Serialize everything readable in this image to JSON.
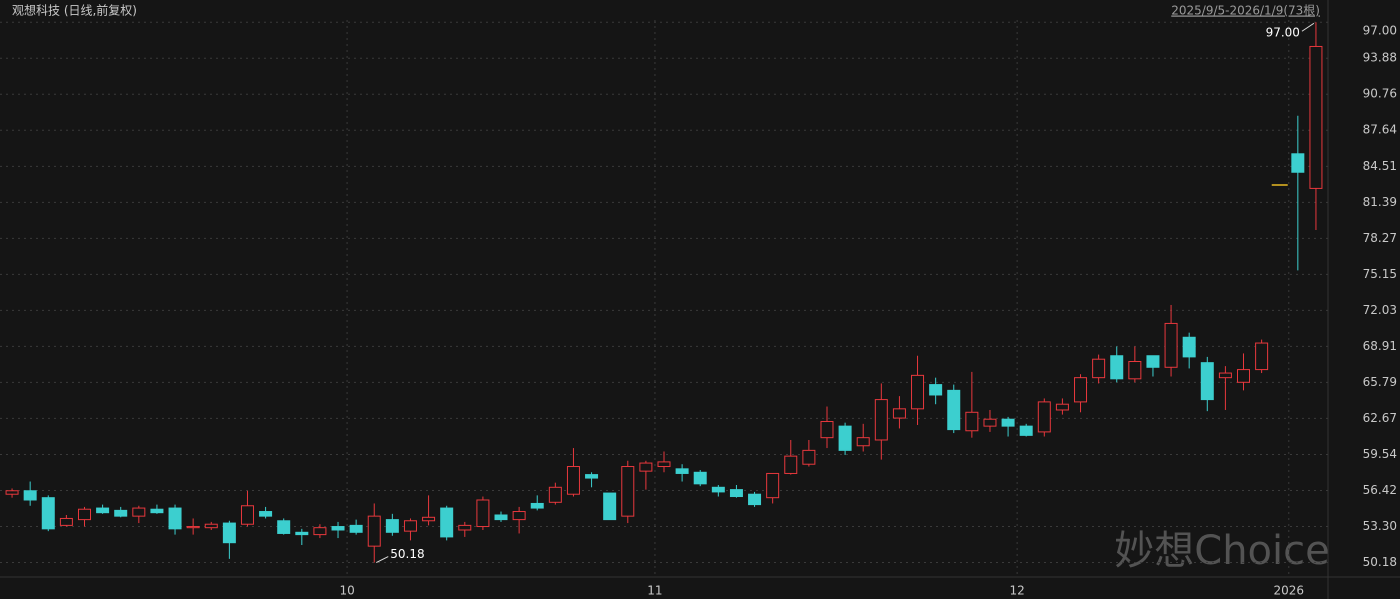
{
  "chart_data": {
    "type": "candlestick",
    "title": "观想科技 (日线,前复权)",
    "subtitle": "2025/9/5-2026/1/9(73根)",
    "categories": [
      null,
      null,
      null,
      null,
      null,
      null,
      null,
      null,
      null,
      null,
      null,
      null,
      null,
      null,
      null,
      null,
      null,
      null,
      null,
      "10",
      null,
      null,
      null,
      null,
      null,
      null,
      null,
      null,
      null,
      null,
      null,
      null,
      null,
      null,
      null,
      null,
      "11",
      null,
      null,
      null,
      null,
      null,
      null,
      null,
      null,
      null,
      null,
      null,
      null,
      null,
      null,
      null,
      null,
      null,
      null,
      null,
      "12",
      null,
      null,
      null,
      null,
      null,
      null,
      null,
      null,
      null,
      null,
      null,
      null,
      null,
      null,
      "2026",
      null
    ],
    "open": [
      56.1,
      56.4,
      55.8,
      53.4,
      53.9,
      54.9,
      54.7,
      54.2,
      54.8,
      54.9,
      53.2,
      53.2,
      53.6,
      53.5,
      54.6,
      53.8,
      52.8,
      52.6,
      53.3,
      53.4,
      51.6,
      53.9,
      52.9,
      53.8,
      54.9,
      53.0,
      53.3,
      54.3,
      53.9,
      55.3,
      55.4,
      56.1,
      57.8,
      56.2,
      54.2,
      58.1,
      58.5,
      58.3,
      58.0,
      56.7,
      56.5,
      56.1,
      55.8,
      57.9,
      58.7,
      61.0,
      62.0,
      60.3,
      60.8,
      62.7,
      63.5,
      65.6,
      65.1,
      61.6,
      62.0,
      62.6,
      62.0,
      61.5,
      63.4,
      64.1,
      66.2,
      68.1,
      66.1,
      68.1,
      67.1,
      69.7,
      67.5,
      66.2,
      65.8,
      66.9,
      82.9,
      85.6,
      82.6
    ],
    "high": [
      56.6,
      57.2,
      56.0,
      54.3,
      55.0,
      55.2,
      55.0,
      55.1,
      55.2,
      55.2,
      54.0,
      53.7,
      53.8,
      56.4,
      55.0,
      54.0,
      53.1,
      53.5,
      53.7,
      53.9,
      55.3,
      54.4,
      54.0,
      56.0,
      55.1,
      53.7,
      55.9,
      54.6,
      55.0,
      56.0,
      57.1,
      60.1,
      58.0,
      56.2,
      59.0,
      59.0,
      59.8,
      58.7,
      58.2,
      56.9,
      56.9,
      56.3,
      57.9,
      60.8,
      60.8,
      63.7,
      62.3,
      62.2,
      65.7,
      64.6,
      68.1,
      66.2,
      65.6,
      66.7,
      63.4,
      62.8,
      62.2,
      64.4,
      64.4,
      66.5,
      68.2,
      68.9,
      68.9,
      68.1,
      72.5,
      70.1,
      68.0,
      67.2,
      68.3,
      69.5,
      82.9,
      88.9,
      97.0
    ],
    "low": [
      55.8,
      55.1,
      52.9,
      53.3,
      53.3,
      54.4,
      54.1,
      53.6,
      54.4,
      52.6,
      52.6,
      53.0,
      50.5,
      53.3,
      54.0,
      52.6,
      51.7,
      52.3,
      52.3,
      52.6,
      50.18,
      52.5,
      52.1,
      53.4,
      52.1,
      52.4,
      53.0,
      53.7,
      52.7,
      54.7,
      55.2,
      55.9,
      56.7,
      53.9,
      53.6,
      56.5,
      58.0,
      57.2,
      56.8,
      55.9,
      55.8,
      55.0,
      55.3,
      57.8,
      58.5,
      60.1,
      59.5,
      59.8,
      59.1,
      61.8,
      62.1,
      63.9,
      61.4,
      61.0,
      61.5,
      61.1,
      61.1,
      61.1,
      63.0,
      63.2,
      65.7,
      65.8,
      65.8,
      66.3,
      66.3,
      67.0,
      63.3,
      63.4,
      65.1,
      66.6,
      82.9,
      75.5,
      79.0
    ],
    "close": [
      56.4,
      55.6,
      53.1,
      54.0,
      54.8,
      54.5,
      54.2,
      54.9,
      54.5,
      53.1,
      53.3,
      53.5,
      51.9,
      55.1,
      54.2,
      52.7,
      52.6,
      53.2,
      53.0,
      52.8,
      54.2,
      52.8,
      53.8,
      54.1,
      52.4,
      53.4,
      55.6,
      53.9,
      54.6,
      54.9,
      56.7,
      58.5,
      57.5,
      53.9,
      58.5,
      58.8,
      58.9,
      57.9,
      57.0,
      56.3,
      55.9,
      55.2,
      57.9,
      59.4,
      59.9,
      62.4,
      59.9,
      61.0,
      64.3,
      63.5,
      66.4,
      64.7,
      61.7,
      63.2,
      62.6,
      62.0,
      61.2,
      64.1,
      63.9,
      66.2,
      67.8,
      66.1,
      67.6,
      67.1,
      70.9,
      68.0,
      64.3,
      66.6,
      66.9,
      69.2,
      82.9,
      84.0,
      94.9
    ],
    "annotations": [
      "97.00",
      "50.18"
    ],
    "up_color": "#e8383d",
    "down_color": "#3ccfcf",
    "flat_color": "#e8b923",
    "ylim": [
      49.1,
      97.8
    ],
    "yticks": [
      {
        "value": 97.0,
        "label": "97.00"
      },
      93.88,
      90.76,
      87.64,
      84.51,
      81.39,
      78.27,
      75.15,
      72.03,
      68.91,
      65.79,
      62.67,
      59.54,
      56.42,
      {
        "value": 53.3,
        "label": "53.30"
      },
      50.18
    ],
    "grid": true
  },
  "watermark": "妙想Choice"
}
